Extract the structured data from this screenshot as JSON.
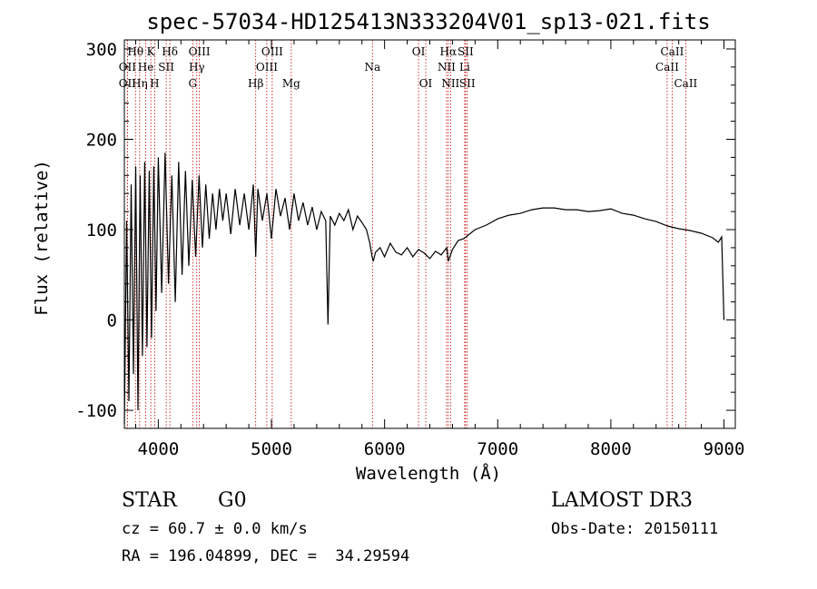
{
  "chart_data": {
    "type": "line",
    "title": "spec-57034-HD125413N333204V01_sp13-021.fits",
    "xlabel": "Wavelength (Å)",
    "ylabel": "Flux (relative)",
    "xlim": [
      3700,
      9100
    ],
    "ylim": [
      -120,
      310
    ],
    "xticks": [
      4000,
      5000,
      6000,
      7000,
      8000,
      9000
    ],
    "yticks": [
      -100,
      0,
      100,
      200,
      300
    ],
    "series": [
      {
        "name": "flux",
        "x": [
          3700,
          3720,
          3740,
          3760,
          3780,
          3800,
          3820,
          3840,
          3860,
          3880,
          3900,
          3920,
          3940,
          3960,
          3980,
          4000,
          4030,
          4060,
          4090,
          4120,
          4150,
          4180,
          4210,
          4240,
          4270,
          4300,
          4330,
          4360,
          4390,
          4420,
          4450,
          4480,
          4510,
          4540,
          4570,
          4600,
          4640,
          4680,
          4720,
          4760,
          4800,
          4840,
          4861,
          4880,
          4920,
          4960,
          5000,
          5040,
          5080,
          5120,
          5160,
          5200,
          5240,
          5280,
          5320,
          5360,
          5400,
          5440,
          5480,
          5500,
          5520,
          5560,
          5600,
          5640,
          5680,
          5720,
          5760,
          5800,
          5840,
          5870,
          5890,
          5900,
          5920,
          5960,
          6000,
          6050,
          6100,
          6150,
          6200,
          6250,
          6300,
          6350,
          6400,
          6450,
          6500,
          6550,
          6563,
          6600,
          6650,
          6700,
          6750,
          6800,
          6900,
          7000,
          7100,
          7200,
          7300,
          7400,
          7500,
          7600,
          7700,
          7800,
          7900,
          8000,
          8100,
          8200,
          8300,
          8400,
          8500,
          8600,
          8700,
          8800,
          8900,
          8950,
          8980,
          9000
        ],
        "y": [
          -115,
          110,
          -90,
          150,
          -60,
          170,
          -100,
          160,
          -40,
          175,
          -30,
          165,
          -20,
          170,
          10,
          180,
          30,
          185,
          40,
          160,
          20,
          175,
          50,
          165,
          60,
          155,
          70,
          160,
          80,
          150,
          90,
          140,
          100,
          145,
          110,
          140,
          95,
          145,
          105,
          140,
          100,
          150,
          70,
          145,
          110,
          140,
          90,
          145,
          115,
          135,
          100,
          140,
          110,
          130,
          105,
          125,
          100,
          120,
          110,
          -5,
          115,
          105,
          118,
          110,
          122,
          100,
          115,
          108,
          100,
          85,
          70,
          65,
          75,
          80,
          70,
          85,
          75,
          72,
          80,
          70,
          78,
          74,
          68,
          76,
          72,
          80,
          65,
          78,
          88,
          90,
          95,
          100,
          105,
          112,
          116,
          118,
          122,
          124,
          124,
          122,
          122,
          120,
          121,
          123,
          118,
          116,
          112,
          109,
          104,
          101,
          99,
          96,
          91,
          86,
          92,
          0
        ]
      }
    ],
    "spectral_lines": [
      {
        "name": "OII",
        "wavelength": 3727,
        "row": 2
      },
      {
        "name": "Hθ",
        "wavelength": 3798,
        "row": 1
      },
      {
        "name": "OII",
        "wavelength": 3727,
        "row": 3
      },
      {
        "name": "Hη",
        "wavelength": 3835,
        "row": 3
      },
      {
        "name": "K",
        "wavelength": 3934,
        "row": 1
      },
      {
        "name": "He",
        "wavelength": 3889,
        "row": 2
      },
      {
        "name": "H",
        "wavelength": 3968,
        "row": 3
      },
      {
        "name": "SII",
        "wavelength": 4070,
        "row": 2
      },
      {
        "name": "Hδ",
        "wavelength": 4102,
        "row": 1
      },
      {
        "name": "OIII",
        "wavelength": 4363,
        "row": 1
      },
      {
        "name": "Hγ",
        "wavelength": 4340,
        "row": 2
      },
      {
        "name": "G",
        "wavelength": 4304,
        "row": 3
      },
      {
        "name": "Hβ",
        "wavelength": 4861,
        "row": 3
      },
      {
        "name": "OIII",
        "wavelength": 5007,
        "row": 1
      },
      {
        "name": "OIII",
        "wavelength": 4959,
        "row": 2
      },
      {
        "name": "Mg",
        "wavelength": 5175,
        "row": 3
      },
      {
        "name": "Na",
        "wavelength": 5893,
        "row": 2
      },
      {
        "name": "OI",
        "wavelength": 6300,
        "row": 1
      },
      {
        "name": "OI",
        "wavelength": 6364,
        "row": 3
      },
      {
        "name": "Hα",
        "wavelength": 6563,
        "row": 1
      },
      {
        "name": "NII",
        "wavelength": 6548,
        "row": 2
      },
      {
        "name": "NII",
        "wavelength": 6583,
        "row": 3
      },
      {
        "name": "SII",
        "wavelength": 6716,
        "row": 1
      },
      {
        "name": "Li",
        "wavelength": 6708,
        "row": 2
      },
      {
        "name": "SII",
        "wavelength": 6731,
        "row": 3
      },
      {
        "name": "CaII",
        "wavelength": 8542,
        "row": 1
      },
      {
        "name": "CaII",
        "wavelength": 8498,
        "row": 2
      },
      {
        "name": "CaII",
        "wavelength": 8662,
        "row": 3
      }
    ],
    "line_color": "#c00000",
    "spectrum_color": "#000000"
  },
  "info": {
    "object_type": "STAR",
    "subclass": "G0",
    "survey": "LAMOST DR3",
    "cz": "cz = 60.7 ± 0.0 km/s",
    "obs_date": "Obs-Date: 20150111",
    "radec": "RA = 196.04899, DEC =  34.29594"
  }
}
